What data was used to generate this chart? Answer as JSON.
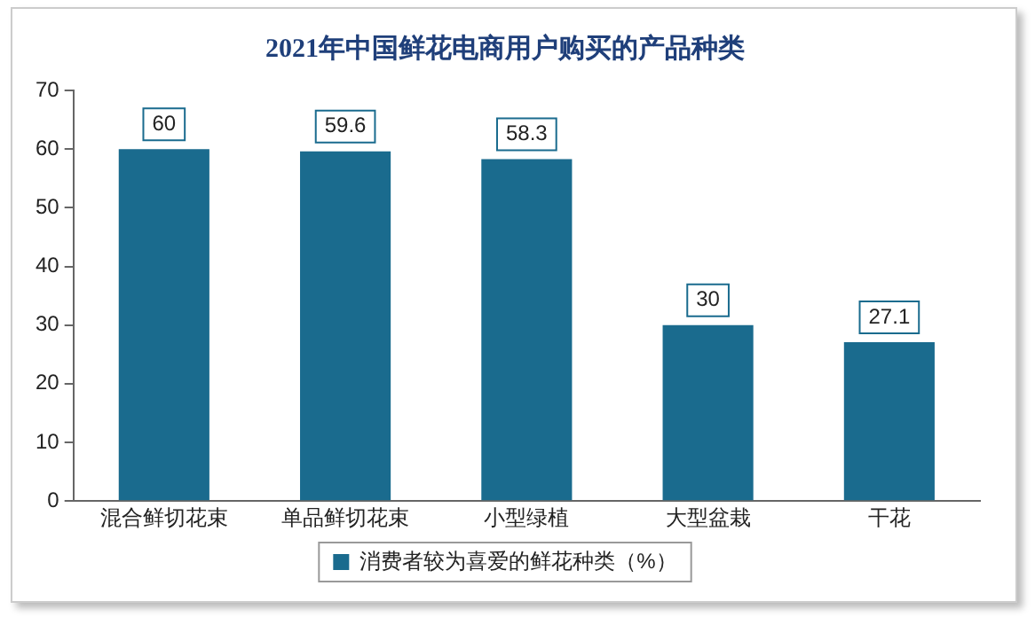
{
  "chart_data": {
    "type": "bar",
    "title": "2021年中国鲜花电商用户购买的产品种类",
    "categories": [
      "混合鲜切花束",
      "单品鲜切花束",
      "小型绿植",
      "大型盆栽",
      "干花"
    ],
    "series": [
      {
        "name": "消费者较为喜爱的鲜花种类（%）",
        "color": "#1a6b8e",
        "values": [
          60,
          59.6,
          58.3,
          30,
          27.1
        ]
      }
    ],
    "ylim": [
      0,
      70
    ],
    "yticks": [
      0,
      10,
      20,
      30,
      40,
      50,
      60,
      70
    ],
    "grid": false,
    "legend": "bottom",
    "data_labels": true
  }
}
